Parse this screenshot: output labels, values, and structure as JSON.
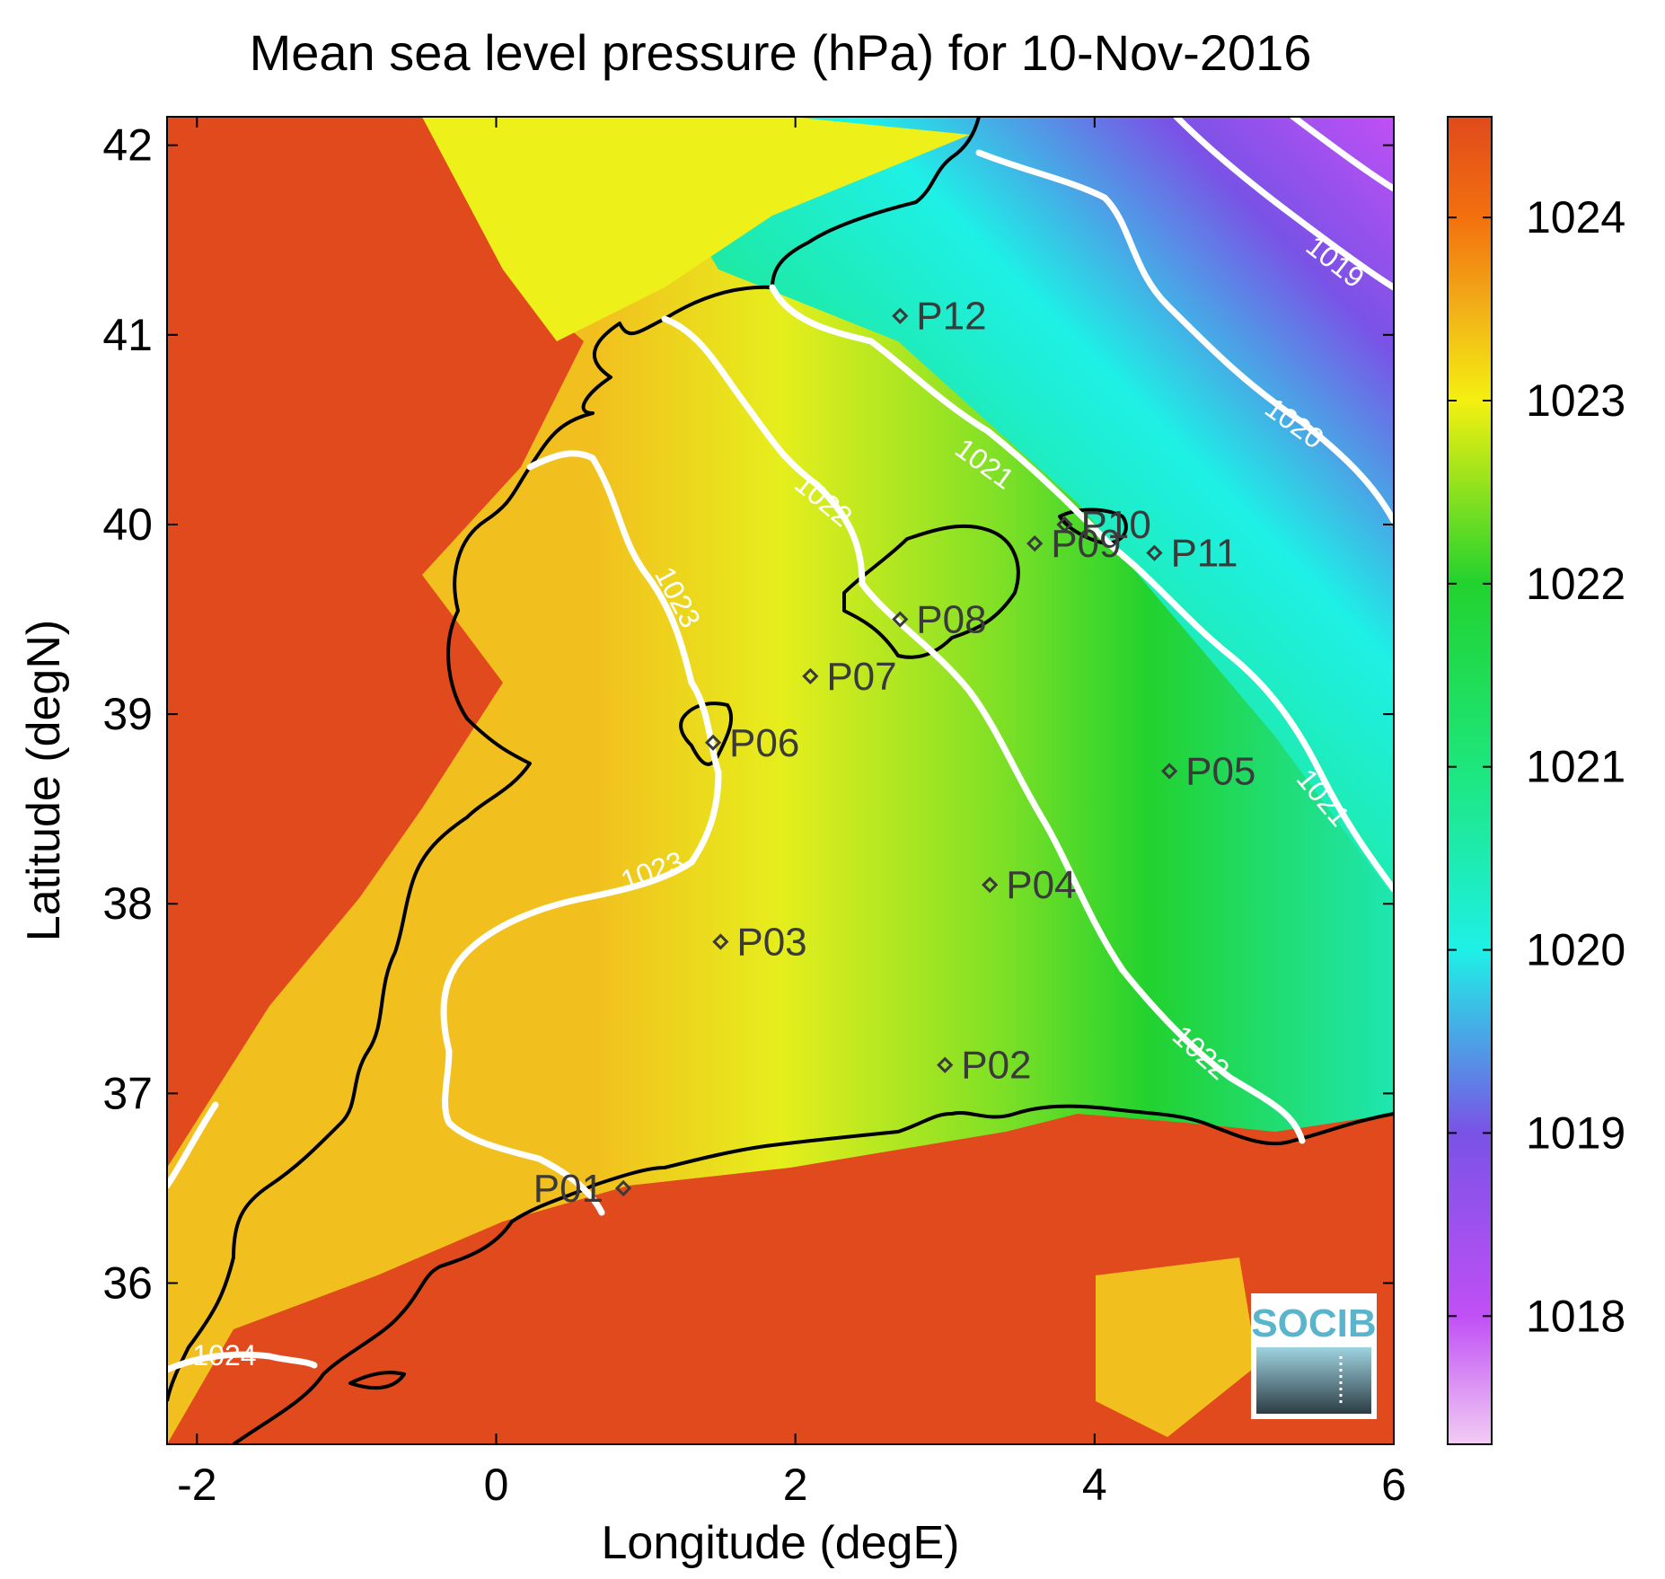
{
  "chart_data": {
    "type": "heatmap",
    "title": "Mean sea level pressure (hPa) for 10-Nov-2016",
    "xlabel": "Longitude (degE)",
    "ylabel": "Latitude (degN)",
    "xlim": [
      -2.2,
      6
    ],
    "ylim": [
      35.15,
      42.15
    ],
    "xticks": [
      -2,
      0,
      2,
      4,
      6
    ],
    "yticks": [
      36,
      37,
      38,
      39,
      40,
      41,
      42
    ],
    "colorbar": {
      "range": [
        1017.3,
        1024.55
      ],
      "ticks": [
        1018,
        1019,
        1020,
        1021,
        1022,
        1023,
        1024
      ],
      "colormap": [
        {
          "v": 1017.3,
          "c": "#f2ccf4"
        },
        {
          "v": 1018.0,
          "c": "#c050f5"
        },
        {
          "v": 1019.0,
          "c": "#7a52e6"
        },
        {
          "v": 1020.0,
          "c": "#1ef0e6"
        },
        {
          "v": 1021.0,
          "c": "#1ee67c"
        },
        {
          "v": 1022.0,
          "c": "#22d22e"
        },
        {
          "v": 1023.0,
          "c": "#f4f010"
        },
        {
          "v": 1023.5,
          "c": "#f2b018"
        },
        {
          "v": 1024.0,
          "c": "#f3700e"
        },
        {
          "v": 1024.55,
          "c": "#e04a1c"
        }
      ]
    },
    "contours": [
      {
        "level": "1019",
        "label_at": [
          5.6,
          41.5
        ]
      },
      {
        "level": "1020",
        "label_at": [
          5.3,
          40.6
        ]
      },
      {
        "level": "1021",
        "label_at": [
          5.6,
          38.6
        ]
      },
      {
        "level": "1021",
        "label_at": [
          3.5,
          40.4
        ]
      },
      {
        "level": "1022",
        "label_at": [
          2.2,
          40.2
        ]
      },
      {
        "level": "1022",
        "label_at": [
          4.75,
          37.2
        ]
      },
      {
        "level": "1023",
        "label_at": [
          1.3,
          39.7
        ]
      },
      {
        "level": "1023",
        "label_at": [
          1.15,
          38.1
        ]
      },
      {
        "level": "1024",
        "label_at": [
          -1.8,
          35.6
        ]
      }
    ],
    "points": [
      {
        "name": "P01",
        "lon": 0.85,
        "lat": 36.5
      },
      {
        "name": "P02",
        "lon": 3.0,
        "lat": 37.15
      },
      {
        "name": "P03",
        "lon": 1.5,
        "lat": 37.8
      },
      {
        "name": "P04",
        "lon": 3.3,
        "lat": 38.1
      },
      {
        "name": "P05",
        "lon": 4.5,
        "lat": 38.7
      },
      {
        "name": "P06",
        "lon": 1.45,
        "lat": 38.85
      },
      {
        "name": "P07",
        "lon": 2.1,
        "lat": 39.2
      },
      {
        "name": "P08",
        "lon": 2.7,
        "lat": 39.5
      },
      {
        "name": "P09",
        "lon": 3.6,
        "lat": 39.9
      },
      {
        "name": "P10",
        "lon": 3.8,
        "lat": 40.0
      },
      {
        "name": "P11",
        "lon": 4.4,
        "lat": 39.85
      },
      {
        "name": "P12",
        "lon": 2.7,
        "lat": 41.1
      }
    ]
  },
  "logo": {
    "text": "SOCIB"
  }
}
